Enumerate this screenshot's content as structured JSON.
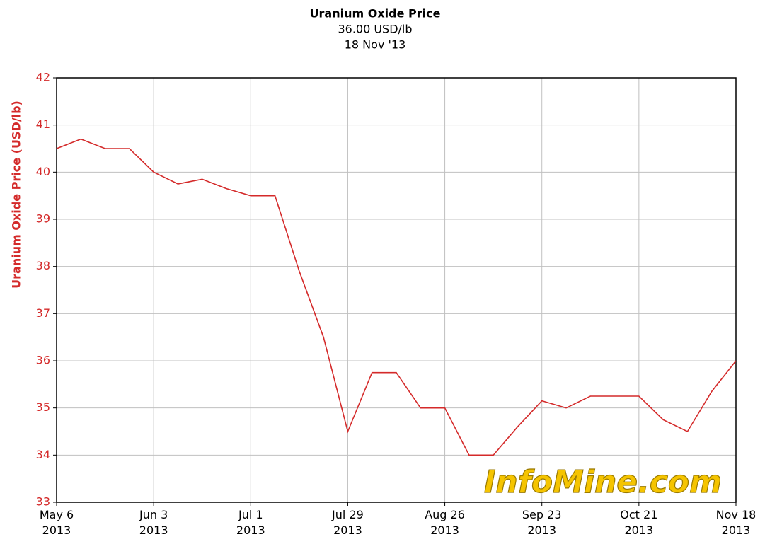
{
  "chart_data": {
    "type": "line",
    "title": "Uranium Oxide Price",
    "subtitle": [
      "36.00 USD/lb",
      "18 Nov '13"
    ],
    "y_label": "Uranium Oxide Price (USD/lb)",
    "watermark": "InfoMine.com",
    "categories": [
      "May 6\n2013",
      null,
      null,
      null,
      "Jun 3\n2013",
      null,
      null,
      null,
      "Jul 1\n2013",
      null,
      null,
      null,
      "Jul 29\n2013",
      null,
      null,
      null,
      "Aug 26\n2013",
      null,
      null,
      null,
      "Sep 23\n2013",
      null,
      null,
      null,
      "Oct 21\n2013",
      null,
      null,
      null,
      "Nov 18\n2013"
    ],
    "series": [
      {
        "name": "Uranium Oxide Price",
        "color": "#d42a2a",
        "values": [
          40.5,
          40.7,
          40.5,
          40.5,
          40.0,
          39.75,
          39.85,
          39.65,
          39.5,
          39.5,
          37.9,
          36.5,
          34.5,
          35.75,
          35.75,
          35.0,
          35.0,
          34.0,
          34.0,
          34.6,
          35.15,
          35.0,
          35.25,
          35.25,
          35.25,
          34.75,
          34.5,
          35.35,
          36.0
        ]
      }
    ],
    "ylim": [
      33,
      42
    ],
    "yticks": [
      33,
      34,
      35,
      36,
      37,
      38,
      39,
      40,
      41,
      42
    ],
    "grid": true,
    "axis_color": "#d42a2a"
  }
}
